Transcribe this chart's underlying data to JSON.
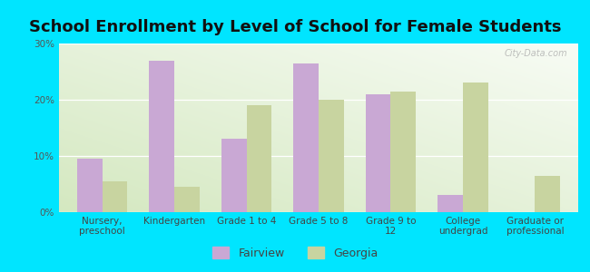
{
  "title": "School Enrollment by Level of School for Female Students",
  "categories": [
    "Nursery,\npreschool",
    "Kindergarten",
    "Grade 1 to 4",
    "Grade 5 to 8",
    "Grade 9 to\n12",
    "College\nundergrad",
    "Graduate or\nprofessional"
  ],
  "fairview": [
    9.5,
    27.0,
    13.0,
    26.5,
    21.0,
    3.0,
    0.0
  ],
  "georgia": [
    5.5,
    4.5,
    19.0,
    20.0,
    21.5,
    23.0,
    6.5
  ],
  "fairview_color": "#c9a8d4",
  "georgia_color": "#c8d4a0",
  "background_outer": "#00e5ff",
  "grad_color_topleft": "#d4e8c0",
  "grad_color_topright": "#f0f5eb",
  "grad_color_bottom": "#e8f2d8",
  "ylim": [
    0,
    30
  ],
  "yticks": [
    0,
    10,
    20,
    30
  ],
  "ytick_labels": [
    "0%",
    "10%",
    "20%",
    "30%"
  ],
  "bar_width": 0.35,
  "title_fontsize": 13,
  "tick_fontsize": 7.5,
  "legend_fontsize": 9,
  "watermark": "City-Data.com"
}
